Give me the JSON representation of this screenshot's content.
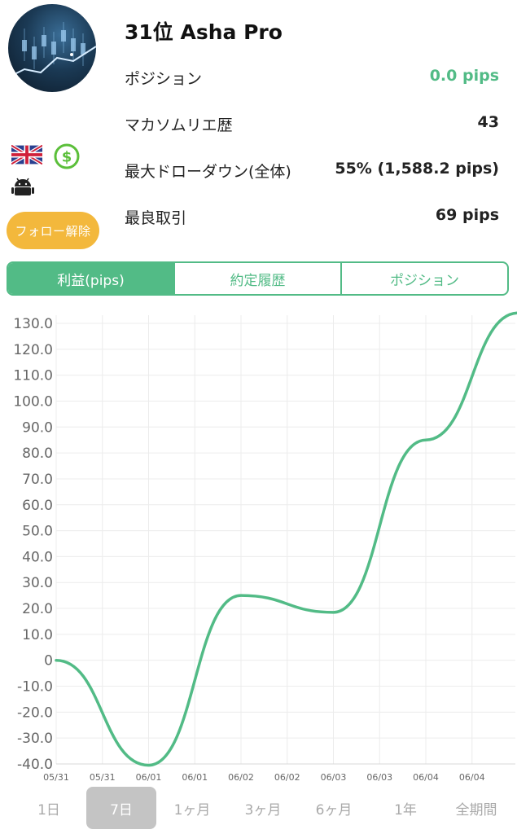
{
  "trader": {
    "name": "31位 Asha Pro",
    "follow_button": "フォロー解除"
  },
  "stats": [
    {
      "label": "ポジション",
      "value": "0.0 pips",
      "highlight": true
    },
    {
      "label": "マカソムリエ歴",
      "value": "43",
      "highlight": false
    },
    {
      "label": "最大ドローダウン(全体)",
      "value": "55% (1,588.2 pips)",
      "highlight": false
    },
    {
      "label": "最良取引",
      "value": "69 pips",
      "highlight": false
    }
  ],
  "icons": [
    "uk-flag-icon",
    "dollar-icon",
    "android-icon"
  ],
  "tabs": [
    {
      "label": "利益(pips)",
      "active": true
    },
    {
      "label": "約定履歴",
      "active": false
    },
    {
      "label": "ポジション",
      "active": false
    }
  ],
  "colors": {
    "accent": "#52bb86",
    "follow": "#f3b83c",
    "period_active": "#c4c4c4"
  },
  "chart_data": {
    "type": "line",
    "ylim": [
      -40,
      130
    ],
    "yticks": [
      130,
      120,
      110,
      100,
      90,
      80,
      70,
      60,
      50,
      40,
      30,
      20,
      10,
      0,
      -10,
      -20,
      -30,
      -40
    ],
    "ytick_labels": [
      "130.0",
      "120.0",
      "110.0",
      "100.0",
      "90.0",
      "80.0",
      "70.0",
      "60.0",
      "50.0",
      "40.0",
      "30.0",
      "20.0",
      "10.0",
      "0",
      "-10.0",
      "-20.0",
      "-30.0",
      "-40.0"
    ],
    "xtick_labels": [
      "05/31",
      "05/31",
      "06/01",
      "06/01",
      "06/02",
      "06/02",
      "06/03",
      "06/03",
      "06/04",
      "06/04"
    ],
    "grid": true,
    "series": [
      {
        "values": [
          0,
          -40.5,
          25,
          18.5,
          85,
          134
        ]
      }
    ]
  },
  "periods": [
    {
      "label": "1日",
      "active": false
    },
    {
      "label": "7日",
      "active": true
    },
    {
      "label": "1ヶ月",
      "active": false
    },
    {
      "label": "3ヶ月",
      "active": false
    },
    {
      "label": "6ヶ月",
      "active": false
    },
    {
      "label": "1年",
      "active": false
    },
    {
      "label": "全期間",
      "active": false
    }
  ]
}
